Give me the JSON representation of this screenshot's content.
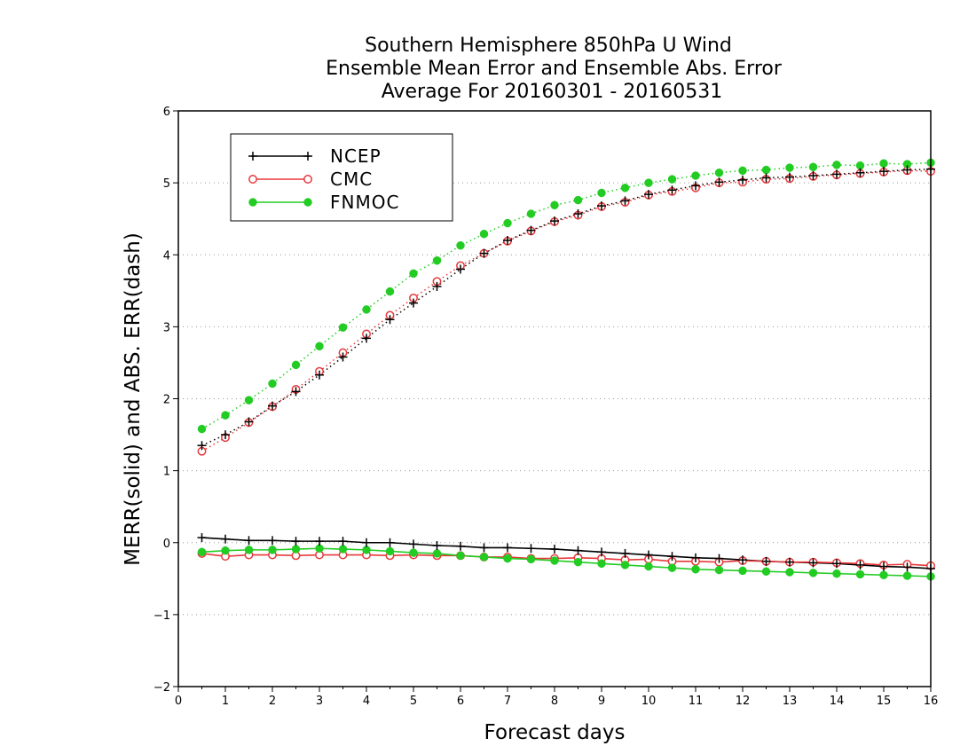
{
  "chart_data": {
    "type": "line",
    "title_lines": [
      "Southern Hemisphere 850hPa U Wind",
      "Ensemble Mean Error and Ensemble Abs. Error",
      "Average For 20160301 - 20160531"
    ],
    "xlabel": "Forecast days",
    "ylabel": "MERR(solid) and ABS. ERR(dash)",
    "xlim": [
      0,
      16
    ],
    "ylim": [
      -2,
      6
    ],
    "x_ticks": [
      "0",
      "1",
      "2",
      "3",
      "4",
      "5",
      "6",
      "7",
      "8",
      "9",
      "10",
      "11",
      "12",
      "13",
      "14",
      "15",
      "16"
    ],
    "y_ticks": [
      "-2",
      "-1",
      "0",
      "1",
      "2",
      "3",
      "4",
      "5",
      "6"
    ],
    "grid": "horizontal dotted",
    "legend_position": "top-left",
    "x": [
      0.5,
      1,
      1.5,
      2,
      2.5,
      3,
      3.5,
      4,
      4.5,
      5,
      5.5,
      6,
      6.5,
      7,
      7.5,
      8,
      8.5,
      9,
      9.5,
      10,
      10.5,
      11,
      11.5,
      12,
      12.5,
      13,
      13.5,
      14,
      14.5,
      15,
      15.5,
      16
    ],
    "series": [
      {
        "name": "NCEP",
        "color": "#000000",
        "marker": "plus",
        "abs_error": [
          1.35,
          1.5,
          1.68,
          1.9,
          2.1,
          2.33,
          2.58,
          2.84,
          3.1,
          3.33,
          3.56,
          3.8,
          4.02,
          4.2,
          4.34,
          4.47,
          4.57,
          4.68,
          4.75,
          4.84,
          4.9,
          4.96,
          5.01,
          5.04,
          5.07,
          5.08,
          5.1,
          5.12,
          5.14,
          5.16,
          5.18,
          5.19
        ],
        "mean_error": [
          0.07,
          0.05,
          0.03,
          0.03,
          0.02,
          0.02,
          0.02,
          0.0,
          0.0,
          -0.02,
          -0.04,
          -0.05,
          -0.07,
          -0.07,
          -0.08,
          -0.09,
          -0.11,
          -0.13,
          -0.15,
          -0.17,
          -0.19,
          -0.21,
          -0.22,
          -0.24,
          -0.26,
          -0.27,
          -0.28,
          -0.29,
          -0.31,
          -0.33,
          -0.34,
          -0.36
        ]
      },
      {
        "name": "CMC",
        "color": "#e8383b",
        "marker": "open-circle",
        "abs_error": [
          1.27,
          1.46,
          1.67,
          1.89,
          2.13,
          2.38,
          2.64,
          2.9,
          3.16,
          3.4,
          3.63,
          3.85,
          4.02,
          4.19,
          4.33,
          4.46,
          4.55,
          4.67,
          4.73,
          4.83,
          4.88,
          4.93,
          5.0,
          5.01,
          5.05,
          5.06,
          5.09,
          5.11,
          5.13,
          5.15,
          5.17,
          5.16
        ],
        "mean_error": [
          -0.15,
          -0.19,
          -0.17,
          -0.17,
          -0.18,
          -0.17,
          -0.17,
          -0.17,
          -0.18,
          -0.17,
          -0.18,
          -0.18,
          -0.2,
          -0.2,
          -0.22,
          -0.22,
          -0.21,
          -0.22,
          -0.24,
          -0.23,
          -0.26,
          -0.26,
          -0.27,
          -0.25,
          -0.26,
          -0.27,
          -0.27,
          -0.28,
          -0.29,
          -0.31,
          -0.3,
          -0.32
        ]
      },
      {
        "name": "FNMOC",
        "color": "#22cc22",
        "marker": "filled-circle",
        "abs_error": [
          1.58,
          1.77,
          1.98,
          2.21,
          2.47,
          2.73,
          2.99,
          3.24,
          3.49,
          3.74,
          3.92,
          4.13,
          4.29,
          4.44,
          4.57,
          4.69,
          4.76,
          4.86,
          4.93,
          5.0,
          5.05,
          5.1,
          5.14,
          5.17,
          5.18,
          5.21,
          5.22,
          5.25,
          5.24,
          5.27,
          5.26,
          5.28
        ],
        "mean_error": [
          -0.13,
          -0.11,
          -0.1,
          -0.1,
          -0.09,
          -0.08,
          -0.09,
          -0.1,
          -0.12,
          -0.14,
          -0.15,
          -0.18,
          -0.2,
          -0.22,
          -0.23,
          -0.25,
          -0.27,
          -0.29,
          -0.31,
          -0.33,
          -0.35,
          -0.37,
          -0.38,
          -0.39,
          -0.4,
          -0.41,
          -0.42,
          -0.43,
          -0.44,
          -0.45,
          -0.46,
          -0.47
        ]
      }
    ]
  }
}
